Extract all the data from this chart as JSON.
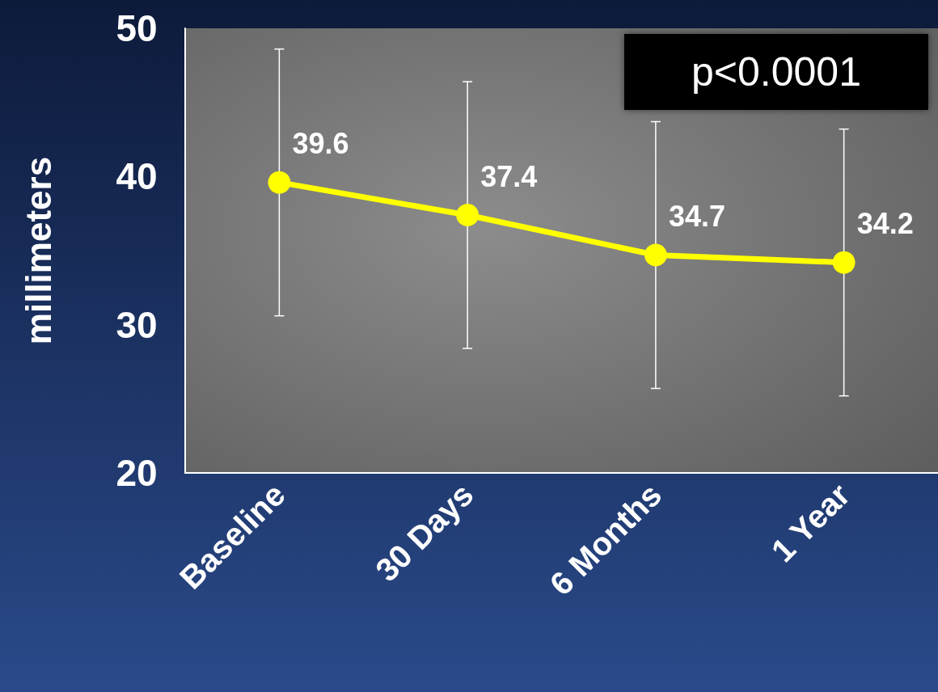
{
  "chart_data": {
    "type": "line",
    "ylabel": "millimeters",
    "categories": [
      "Baseline",
      "30 Days",
      "6 Months",
      "1 Year"
    ],
    "series": [
      {
        "color": "#ffff00",
        "values": [
          39.6,
          37.4,
          34.7,
          34.2
        ],
        "errors": [
          9,
          9,
          9,
          9
        ]
      }
    ],
    "ylim": [
      20,
      50
    ],
    "yticks": [
      20,
      30,
      40,
      50
    ],
    "grid": false,
    "marker": "circle",
    "line_style": "solid",
    "data_labels": true,
    "annotations": [
      "p<0.0001"
    ]
  }
}
